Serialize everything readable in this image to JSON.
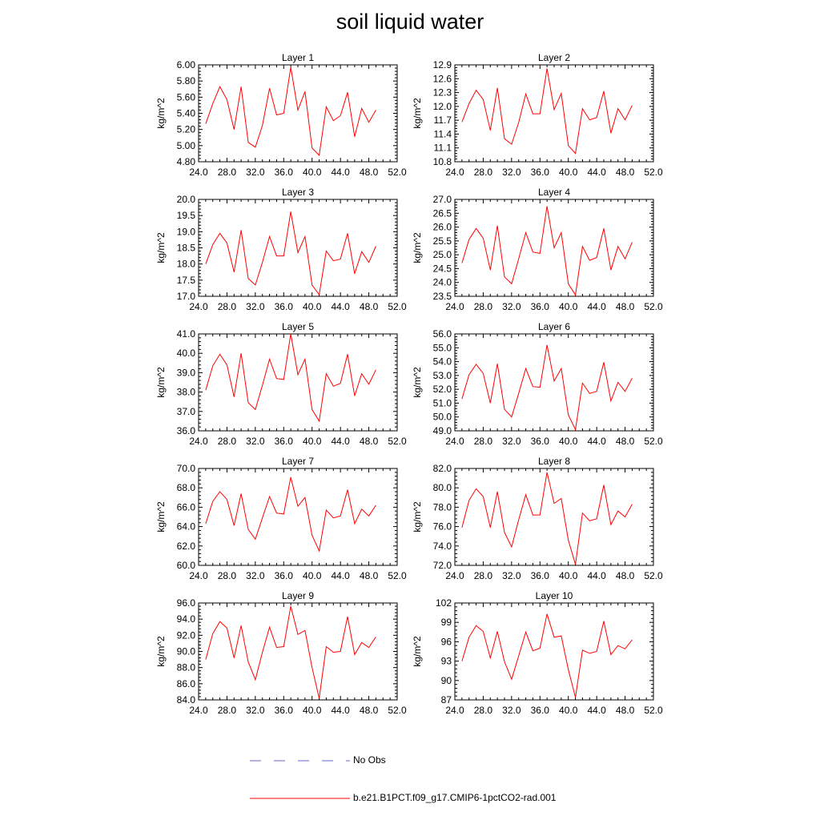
{
  "title": "soil liquid water",
  "legend": {
    "entries": [
      {
        "label": "No Obs",
        "style": "dashed",
        "color": "#6666cc"
      },
      {
        "label": "b.e21.B1PCT.f09_g17.CMIP6-1pctCO2-rad.001",
        "style": "solid",
        "color": "#ff0000"
      }
    ]
  },
  "chart_data": [
    {
      "type": "line",
      "title": "Layer 1",
      "xlabel": "",
      "ylabel": "kg/m^2",
      "xlim": [
        24,
        52
      ],
      "ylim": [
        4.8,
        6.0
      ],
      "xticks": [
        "24.0",
        "28.0",
        "32.0",
        "36.0",
        "40.0",
        "44.0",
        "48.0",
        "52.0"
      ],
      "yticks": [
        "4.80",
        "5.00",
        "5.20",
        "5.40",
        "5.60",
        "5.80",
        "6.00"
      ],
      "x": [
        25,
        26,
        27,
        28,
        29,
        30,
        31,
        32,
        33,
        34,
        35,
        36,
        37,
        38,
        39,
        40,
        41,
        42,
        43,
        44,
        45,
        46,
        47,
        48,
        49
      ],
      "series": [
        {
          "name": "b.e21.B1PCT.f09_g17.CMIP6-1pctCO2-rad.001",
          "color": "#ff0000",
          "values": [
            5.27,
            5.52,
            5.73,
            5.57,
            5.2,
            5.73,
            5.04,
            4.98,
            5.25,
            5.71,
            5.38,
            5.4,
            5.97,
            5.44,
            5.67,
            4.97,
            4.88,
            5.48,
            5.31,
            5.37,
            5.66,
            5.11,
            5.46,
            5.29,
            5.44
          ]
        }
      ]
    },
    {
      "type": "line",
      "title": "Layer 2",
      "xlabel": "",
      "ylabel": "kg/m^2",
      "xlim": [
        24,
        52
      ],
      "ylim": [
        10.8,
        12.9
      ],
      "xticks": [
        "24.0",
        "28.0",
        "32.0",
        "36.0",
        "40.0",
        "44.0",
        "48.0",
        "52.0"
      ],
      "yticks": [
        "10.8",
        "11.1",
        "11.4",
        "11.7",
        "12.0",
        "12.3",
        "12.6",
        "12.9"
      ],
      "x": [
        25,
        26,
        27,
        28,
        29,
        30,
        31,
        32,
        33,
        34,
        35,
        36,
        37,
        38,
        39,
        40,
        41,
        42,
        43,
        44,
        45,
        46,
        47,
        48,
        49
      ],
      "series": [
        {
          "name": "b.e21.B1PCT.f09_g17.CMIP6-1pctCO2-rad.001",
          "color": "#ff0000",
          "values": [
            11.66,
            12.06,
            12.35,
            12.15,
            11.48,
            12.4,
            11.3,
            11.18,
            11.65,
            12.27,
            11.84,
            11.84,
            12.82,
            11.93,
            12.28,
            11.15,
            10.98,
            11.95,
            11.71,
            11.76,
            12.33,
            11.42,
            11.95,
            11.71,
            12.02
          ]
        }
      ]
    },
    {
      "type": "line",
      "title": "Layer 3",
      "xlabel": "",
      "ylabel": "kg/m^2",
      "xlim": [
        24,
        52
      ],
      "ylim": [
        17.0,
        20.0
      ],
      "xticks": [
        "24.0",
        "28.0",
        "32.0",
        "36.0",
        "40.0",
        "44.0",
        "48.0",
        "52.0"
      ],
      "yticks": [
        "17.0",
        "17.5",
        "18.0",
        "18.5",
        "19.0",
        "19.5",
        "20.0"
      ],
      "x": [
        25,
        26,
        27,
        28,
        29,
        30,
        31,
        32,
        33,
        34,
        35,
        36,
        37,
        38,
        39,
        40,
        41,
        42,
        43,
        44,
        45,
        46,
        47,
        48,
        49
      ],
      "series": [
        {
          "name": "b.e21.B1PCT.f09_g17.CMIP6-1pctCO2-rad.001",
          "color": "#ff0000",
          "values": [
            18.0,
            18.6,
            18.95,
            18.65,
            17.75,
            19.05,
            17.55,
            17.35,
            18.05,
            18.85,
            18.25,
            18.25,
            19.62,
            18.35,
            18.85,
            17.35,
            17.05,
            18.4,
            18.1,
            18.15,
            18.95,
            17.7,
            18.38,
            18.05,
            18.55
          ]
        }
      ]
    },
    {
      "type": "line",
      "title": "Layer 4",
      "xlabel": "",
      "ylabel": "kg/m^2",
      "xlim": [
        24,
        52
      ],
      "ylim": [
        23.5,
        27.0
      ],
      "xticks": [
        "24.0",
        "28.0",
        "32.0",
        "36.0",
        "40.0",
        "44.0",
        "48.0",
        "52.0"
      ],
      "yticks": [
        "23.5",
        "24.0",
        "24.5",
        "25.0",
        "25.5",
        "26.0",
        "26.5",
        "27.0"
      ],
      "x": [
        25,
        26,
        27,
        28,
        29,
        30,
        31,
        32,
        33,
        34,
        35,
        36,
        37,
        38,
        39,
        40,
        41,
        42,
        43,
        44,
        45,
        46,
        47,
        48,
        49
      ],
      "series": [
        {
          "name": "b.e21.B1PCT.f09_g17.CMIP6-1pctCO2-rad.001",
          "color": "#ff0000",
          "values": [
            24.7,
            25.55,
            25.95,
            25.6,
            24.45,
            26.05,
            24.2,
            23.95,
            24.85,
            25.8,
            25.1,
            25.05,
            26.75,
            25.25,
            25.8,
            23.95,
            23.55,
            25.3,
            24.8,
            24.9,
            25.95,
            24.45,
            25.3,
            24.85,
            25.45
          ]
        }
      ]
    },
    {
      "type": "line",
      "title": "Layer 5",
      "xlabel": "",
      "ylabel": "kg/m^2",
      "xlim": [
        24,
        52
      ],
      "ylim": [
        36.0,
        41.0
      ],
      "xticks": [
        "24.0",
        "28.0",
        "32.0",
        "36.0",
        "40.0",
        "44.0",
        "48.0",
        "52.0"
      ],
      "yticks": [
        "36.0",
        "37.0",
        "38.0",
        "39.0",
        "40.0",
        "41.0"
      ],
      "x": [
        25,
        26,
        27,
        28,
        29,
        30,
        31,
        32,
        33,
        34,
        35,
        36,
        37,
        38,
        39,
        40,
        41,
        42,
        43,
        44,
        45,
        46,
        47,
        48,
        49
      ],
      "series": [
        {
          "name": "b.e21.B1PCT.f09_g17.CMIP6-1pctCO2-rad.001",
          "color": "#ff0000",
          "values": [
            38.1,
            39.35,
            39.95,
            39.4,
            37.75,
            40.0,
            37.45,
            37.1,
            38.35,
            39.7,
            38.7,
            38.65,
            41.0,
            38.9,
            39.7,
            37.1,
            36.5,
            38.95,
            38.3,
            38.45,
            39.95,
            37.8,
            38.95,
            38.4,
            39.15
          ]
        }
      ]
    },
    {
      "type": "line",
      "title": "Layer 6",
      "xlabel": "",
      "ylabel": "kg/m^2",
      "xlim": [
        24,
        52
      ],
      "ylim": [
        49.0,
        56.0
      ],
      "xticks": [
        "24.0",
        "28.0",
        "32.0",
        "36.0",
        "40.0",
        "44.0",
        "48.0",
        "52.0"
      ],
      "yticks": [
        "49.0",
        "50.0",
        "51.0",
        "52.0",
        "53.0",
        "54.0",
        "55.0",
        "56.0"
      ],
      "x": [
        25,
        26,
        27,
        28,
        29,
        30,
        31,
        32,
        33,
        34,
        35,
        36,
        37,
        38,
        39,
        40,
        41,
        42,
        43,
        44,
        45,
        46,
        47,
        48,
        49
      ],
      "series": [
        {
          "name": "b.e21.B1PCT.f09_g17.CMIP6-1pctCO2-rad.001",
          "color": "#ff0000",
          "values": [
            51.3,
            53.05,
            53.8,
            53.15,
            51.0,
            53.85,
            50.55,
            50.0,
            51.7,
            53.5,
            52.2,
            52.15,
            55.2,
            52.6,
            53.5,
            50.15,
            49.1,
            52.45,
            51.7,
            51.85,
            53.95,
            51.15,
            52.5,
            51.85,
            52.8
          ]
        }
      ]
    },
    {
      "type": "line",
      "title": "Layer 7",
      "xlabel": "",
      "ylabel": "kg/m^2",
      "xlim": [
        24,
        52
      ],
      "ylim": [
        60.0,
        70.0
      ],
      "xticks": [
        "24.0",
        "28.0",
        "32.0",
        "36.0",
        "40.0",
        "44.0",
        "48.0",
        "52.0"
      ],
      "yticks": [
        "60.0",
        "62.0",
        "64.0",
        "66.0",
        "68.0",
        "70.0"
      ],
      "x": [
        25,
        26,
        27,
        28,
        29,
        30,
        31,
        32,
        33,
        34,
        35,
        36,
        37,
        38,
        39,
        40,
        41,
        42,
        43,
        44,
        45,
        46,
        47,
        48,
        49
      ],
      "series": [
        {
          "name": "b.e21.B1PCT.f09_g17.CMIP6-1pctCO2-rad.001",
          "color": "#ff0000",
          "values": [
            64.3,
            66.6,
            67.6,
            66.8,
            64.1,
            67.4,
            63.7,
            62.7,
            64.9,
            67.1,
            65.4,
            65.3,
            69.1,
            66.1,
            67.0,
            63.1,
            61.5,
            65.7,
            64.9,
            65.1,
            67.8,
            64.3,
            65.8,
            65.1,
            66.2
          ]
        }
      ]
    },
    {
      "type": "line",
      "title": "Layer 8",
      "xlabel": "",
      "ylabel": "kg/m^2",
      "xlim": [
        24,
        52
      ],
      "ylim": [
        72.0,
        82.0
      ],
      "xticks": [
        "24.0",
        "28.0",
        "32.0",
        "36.0",
        "40.0",
        "44.0",
        "48.0",
        "52.0"
      ],
      "yticks": [
        "72.0",
        "74.0",
        "76.0",
        "78.0",
        "80.0",
        "82.0"
      ],
      "x": [
        25,
        26,
        27,
        28,
        29,
        30,
        31,
        32,
        33,
        34,
        35,
        36,
        37,
        38,
        39,
        40,
        41,
        42,
        43,
        44,
        45,
        46,
        47,
        48,
        49
      ],
      "series": [
        {
          "name": "b.e21.B1PCT.f09_g17.CMIP6-1pctCO2-rad.001",
          "color": "#ff0000",
          "values": [
            75.9,
            78.7,
            79.9,
            79.1,
            75.9,
            79.6,
            75.4,
            73.9,
            76.7,
            79.3,
            77.2,
            77.2,
            81.6,
            78.4,
            78.9,
            74.6,
            72.1,
            77.4,
            76.6,
            76.8,
            80.3,
            76.2,
            77.6,
            77.0,
            78.3
          ]
        }
      ]
    },
    {
      "type": "line",
      "title": "Layer 9",
      "xlabel": "",
      "ylabel": "kg/m^2",
      "xlim": [
        24,
        52
      ],
      "ylim": [
        84.0,
        96.0
      ],
      "xticks": [
        "24.0",
        "28.0",
        "32.0",
        "36.0",
        "40.0",
        "44.0",
        "48.0",
        "52.0"
      ],
      "yticks": [
        "84.0",
        "86.0",
        "88.0",
        "90.0",
        "92.0",
        "94.0",
        "96.0"
      ],
      "x": [
        25,
        26,
        27,
        28,
        29,
        30,
        31,
        32,
        33,
        34,
        35,
        36,
        37,
        38,
        39,
        40,
        41,
        42,
        43,
        44,
        45,
        46,
        47,
        48,
        49
      ],
      "series": [
        {
          "name": "b.e21.B1PCT.f09_g17.CMIP6-1pctCO2-rad.001",
          "color": "#ff0000",
          "values": [
            89.0,
            92.2,
            93.7,
            92.9,
            89.2,
            93.2,
            88.7,
            86.5,
            89.9,
            93.0,
            90.5,
            90.6,
            95.6,
            92.1,
            92.6,
            88.0,
            84.2,
            90.6,
            89.9,
            90.0,
            94.3,
            89.6,
            91.1,
            90.5,
            91.8
          ]
        }
      ]
    },
    {
      "type": "line",
      "title": "Layer 10",
      "xlabel": "",
      "ylabel": "kg/m^2",
      "xlim": [
        24,
        52
      ],
      "ylim": [
        87,
        102
      ],
      "xticks": [
        "24.0",
        "28.0",
        "32.0",
        "36.0",
        "40.0",
        "44.0",
        "48.0",
        "52.0"
      ],
      "yticks": [
        "87",
        "90",
        "93",
        "96",
        "99",
        "102"
      ],
      "x": [
        25,
        26,
        27,
        28,
        29,
        30,
        31,
        32,
        33,
        34,
        35,
        36,
        37,
        38,
        39,
        40,
        41,
        42,
        43,
        44,
        45,
        46,
        47,
        48,
        49
      ],
      "series": [
        {
          "name": "b.e21.B1PCT.f09_g17.CMIP6-1pctCO2-rad.001",
          "color": "#ff0000",
          "values": [
            93.0,
            96.7,
            98.5,
            97.6,
            93.5,
            97.6,
            92.9,
            90.2,
            93.8,
            97.5,
            94.6,
            95.0,
            100.3,
            96.7,
            96.9,
            91.7,
            87.4,
            94.7,
            94.2,
            94.5,
            99.2,
            94.0,
            95.4,
            94.9,
            96.3
          ]
        }
      ]
    }
  ]
}
